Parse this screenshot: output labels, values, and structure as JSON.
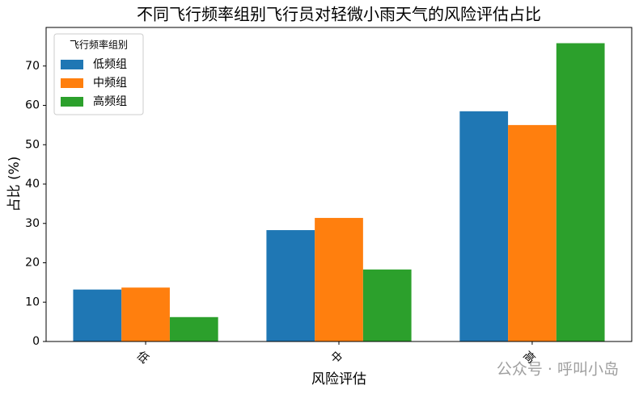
{
  "chart_data": {
    "type": "bar",
    "title": "不同飞行频率组别飞行员对轻微小雨天气的风险评估占比",
    "x_label": "风险评估",
    "y_label": "占比 (%)",
    "categories": [
      "低",
      "中",
      "高"
    ],
    "series": [
      {
        "name": "低频组",
        "color": "#1f77b4",
        "values": [
          13.2,
          28.3,
          58.5
        ]
      },
      {
        "name": "中频组",
        "color": "#ff7f0e",
        "values": [
          13.7,
          31.4,
          55.0
        ]
      },
      {
        "name": "高频组",
        "color": "#2ca02c",
        "values": [
          6.2,
          18.3,
          75.8
        ]
      }
    ],
    "legend_title": "飞行频率组别",
    "legend": "upper left",
    "ylim": [
      0,
      79.8
    ],
    "yticks": [
      0,
      10,
      20,
      30,
      40,
      50,
      60,
      70
    ],
    "watermark": "公众号 · 呼叫小岛"
  }
}
